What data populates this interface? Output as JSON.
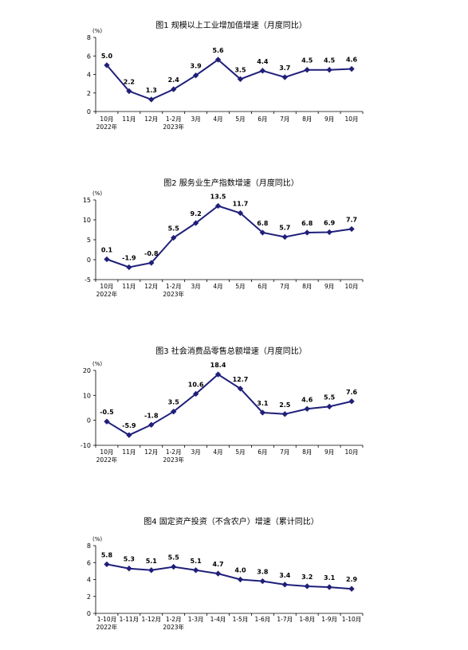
{
  "line_color": "#1f1f7a",
  "axis_color": "#000000",
  "chart_data": [
    {
      "type": "line",
      "title": "图1   规模以上工业增加值增速（月度同比）",
      "unit": "(%)",
      "ylim": [
        0,
        8
      ],
      "yticks": [
        0,
        2,
        4,
        6,
        8
      ],
      "categories": [
        "10月",
        "11月",
        "12月",
        "1-2月",
        "3月",
        "4月",
        "5月",
        "6月",
        "7月",
        "8月",
        "9月",
        "10月"
      ],
      "year_labels": [
        {
          "index": 0,
          "text": "2022年"
        },
        {
          "index": 3,
          "text": "2023年"
        }
      ],
      "values": [
        5.0,
        2.2,
        1.3,
        2.4,
        3.9,
        5.6,
        3.5,
        4.4,
        3.7,
        4.5,
        4.5,
        4.6
      ],
      "labels": [
        "5.0",
        "2.2",
        "1.3",
        "2.4",
        "3.9",
        "5.6",
        "3.5",
        "4.4",
        "3.7",
        "4.5",
        "4.5",
        "4.6"
      ],
      "grid": false
    },
    {
      "type": "line",
      "title": "图2   服务业生产指数增速（月度同比）",
      "unit": "(%)",
      "ylim": [
        -5,
        15
      ],
      "yticks": [
        -5,
        0,
        5,
        10,
        15
      ],
      "categories": [
        "10月",
        "11月",
        "12月",
        "1-2月",
        "3月",
        "4月",
        "5月",
        "6月",
        "7月",
        "8月",
        "9月",
        "10月"
      ],
      "year_labels": [
        {
          "index": 0,
          "text": "2022年"
        },
        {
          "index": 3,
          "text": "2023年"
        }
      ],
      "values": [
        0.1,
        -1.9,
        -0.8,
        5.5,
        9.2,
        13.5,
        11.7,
        6.8,
        5.7,
        6.8,
        6.9,
        7.7
      ],
      "labels": [
        "0.1",
        "-1.9",
        "-0.8",
        "5.5",
        "9.2",
        "13.5",
        "11.7",
        "6.8",
        "5.7",
        "6.8",
        "6.9",
        "7.7"
      ],
      "grid": false
    },
    {
      "type": "line",
      "title": "图3   社会消费品零售总额增速（月度同比）",
      "unit": "(%)",
      "ylim": [
        -10,
        20
      ],
      "yticks": [
        -10,
        0,
        10,
        20
      ],
      "categories": [
        "10月",
        "11月",
        "12月",
        "1-2月",
        "3月",
        "4月",
        "5月",
        "6月",
        "7月",
        "8月",
        "9月",
        "10月"
      ],
      "year_labels": [
        {
          "index": 0,
          "text": "2022年"
        },
        {
          "index": 3,
          "text": "2023年"
        }
      ],
      "values": [
        -0.5,
        -5.9,
        -1.8,
        3.5,
        10.6,
        18.4,
        12.7,
        3.1,
        2.5,
        4.6,
        5.5,
        7.6
      ],
      "labels": [
        "-0.5",
        "-5.9",
        "-1.8",
        "3.5",
        "10.6",
        "18.4",
        "12.7",
        "3.1",
        "2.5",
        "4.6",
        "5.5",
        "7.6"
      ],
      "grid": false
    },
    {
      "type": "line",
      "title": "图4   固定资产投资（不含农户）增速（累计同比）",
      "unit": "(%)",
      "ylim": [
        0,
        8
      ],
      "yticks": [
        0,
        2,
        4,
        6,
        8
      ],
      "categories": [
        "1-10月",
        "1-11月",
        "1-12月",
        "1-2月",
        "1-3月",
        "1-4月",
        "1-5月",
        "1-6月",
        "1-7月",
        "1-8月",
        "1-9月",
        "1-10月"
      ],
      "year_labels": [
        {
          "index": 0,
          "text": "2022年"
        },
        {
          "index": 3,
          "text": "2023年"
        }
      ],
      "values": [
        5.8,
        5.3,
        5.1,
        5.5,
        5.1,
        4.7,
        4.0,
        3.8,
        3.4,
        3.2,
        3.1,
        2.9
      ],
      "labels": [
        "5.8",
        "5.3",
        "5.1",
        "5.5",
        "5.1",
        "4.7",
        "4.0",
        "3.8",
        "3.4",
        "3.2",
        "3.1",
        "2.9"
      ],
      "grid": false
    }
  ]
}
